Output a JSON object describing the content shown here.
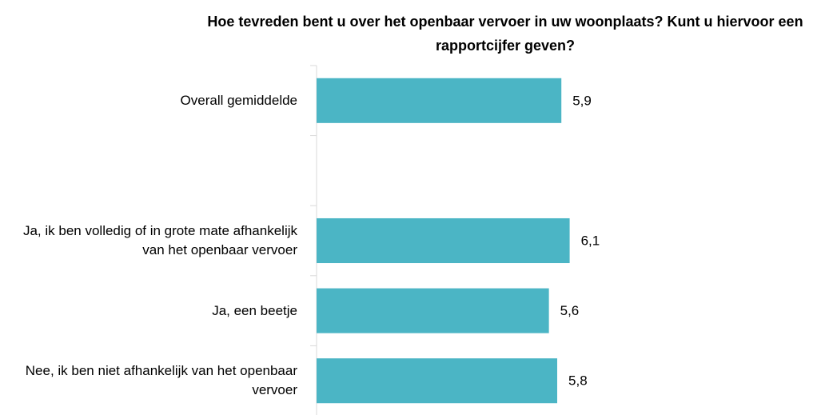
{
  "chart_data": {
    "type": "bar",
    "orientation": "horizontal",
    "title": "Hoe tevreden bent u over het openbaar vervoer in uw woonplaats? Kunt u hiervoor een rapportcijfer geven?",
    "categories": [
      "Overall gemiddelde",
      null,
      "Ja, ik ben volledig of in grote mate afhankelijk van het openbaar vervoer",
      "Ja, een beetje",
      "Nee, ik ben niet afhankelijk van het openbaar vervoer"
    ],
    "values": [
      5.9,
      null,
      6.1,
      5.6,
      5.8
    ],
    "value_labels": [
      "5,9",
      null,
      "6,1",
      "5,6",
      "5,8"
    ],
    "color": "#4bb5c5",
    "xlim": [
      0,
      10
    ]
  }
}
